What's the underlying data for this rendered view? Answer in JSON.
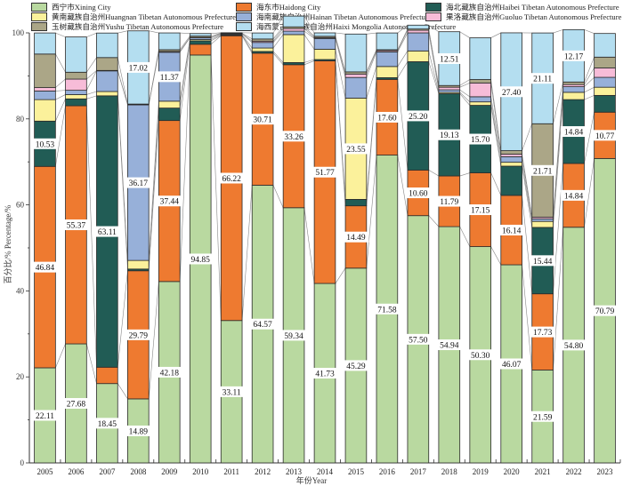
{
  "chart_data": {
    "type": "bar",
    "stacked": true,
    "title": "",
    "xlabel": "年份Year",
    "ylabel": "百分比/%  Percentage/%",
    "ylim": [
      0,
      100
    ],
    "yticks": [
      0,
      20,
      40,
      60,
      80,
      100
    ],
    "grid": false,
    "legend_position": "top",
    "categories": [
      "2005",
      "2006",
      "2007",
      "2008",
      "2009",
      "2010",
      "2011",
      "2012",
      "2013",
      "2014",
      "2015",
      "2016",
      "2017",
      "2018",
      "2019",
      "2020",
      "2021",
      "2022",
      "2023"
    ],
    "series": [
      {
        "name": "西宁市Xining City",
        "color": "#b9d9a0",
        "values": [
          22.11,
          27.68,
          18.45,
          14.89,
          42.18,
          94.85,
          33.11,
          64.57,
          59.34,
          41.73,
          45.29,
          71.58,
          57.5,
          54.94,
          50.3,
          46.07,
          21.59,
          54.8,
          70.79
        ]
      },
      {
        "name": "海东市Haidong City",
        "color": "#ee7a30",
        "values": [
          46.84,
          55.37,
          3.8,
          29.79,
          37.44,
          2.5,
          66.22,
          30.71,
          33.26,
          51.77,
          14.49,
          17.6,
          10.6,
          11.79,
          17.15,
          16.14,
          17.73,
          14.84,
          10.77
        ]
      },
      {
        "name": "海北藏族自治州Haibei Tibetan Autonomous Prefecture",
        "color": "#215c55",
        "values": [
          10.53,
          1.6,
          63.11,
          0.4,
          2.9,
          0.8,
          0.1,
          0.4,
          0.5,
          0.3,
          1.5,
          0.4,
          25.2,
          19.13,
          15.7,
          6.8,
          15.44,
          14.84,
          3.9
        ]
      },
      {
        "name": "黄南藏族自治州Huangnan Tibetan Autonomous Prefecture",
        "color": "#fbf19b",
        "values": [
          5.0,
          1.0,
          1.0,
          2.0,
          1.6,
          0.3,
          0.1,
          0.8,
          6.5,
          2.4,
          23.55,
          2.6,
          2.5,
          0.3,
          0.8,
          0.9,
          1.4,
          1.7,
          1.9
        ]
      },
      {
        "name": "海南藏族自治州Hainan Tibetan Autonomous Prefecture",
        "color": "#97b0d9",
        "values": [
          2.0,
          1.0,
          4.8,
          36.17,
          11.37,
          0.4,
          0.2,
          1.3,
          0.8,
          2.5,
          4.8,
          3.4,
          4.2,
          0.6,
          1.2,
          1.3,
          0.6,
          1.3,
          2.3
        ]
      },
      {
        "name": "果洛藏族自治州Guoluo Tibetan Autonomous Prefecture",
        "color": "#f7bcd8",
        "values": [
          0.8,
          2.6,
          0.1,
          0.1,
          0.2,
          0.1,
          0.1,
          0.3,
          0.6,
          0.2,
          0.8,
          0.3,
          0.6,
          0.6,
          3.2,
          0.6,
          0.4,
          0.5,
          2.2
        ]
      },
      {
        "name": "玉树藏族自治州Yushu Tibetan Autonomous Prefecture",
        "color": "#aba687",
        "values": [
          7.8,
          1.6,
          3.0,
          0.1,
          0.4,
          0.3,
          0.1,
          0.5,
          0.4,
          0.3,
          0.5,
          0.2,
          0.3,
          0.4,
          0.8,
          0.8,
          21.71,
          0.6,
          2.5
        ]
      },
      {
        "name": "海西蒙古族藏族自治州Haixi Mongolia Autonomous Prefecture",
        "color": "#b4def0",
        "values": [
          4.9,
          8.2,
          5.7,
          17.02,
          3.9,
          0.6,
          0.1,
          1.4,
          2.5,
          0.8,
          8.8,
          3.9,
          0.9,
          12.51,
          9.7,
          27.4,
          21.11,
          12.17,
          5.5
        ]
      }
    ],
    "labels": [
      {
        "series": 0,
        "indices": [
          0,
          1,
          2,
          3,
          4,
          5,
          6,
          7,
          8,
          9,
          10,
          11,
          12,
          13,
          14,
          15,
          16,
          17,
          18
        ]
      },
      {
        "series": 1,
        "indices": [
          0,
          1,
          3,
          4,
          6,
          7,
          8,
          9,
          10,
          11,
          12,
          13,
          14,
          15,
          16,
          17,
          18
        ]
      },
      {
        "series": 2,
        "indices": [
          0,
          2,
          12,
          13,
          14,
          16,
          17
        ]
      },
      {
        "series": 3,
        "indices": [
          10
        ]
      },
      {
        "series": 4,
        "indices": [
          3,
          4
        ]
      },
      {
        "series": 6,
        "indices": [
          16
        ]
      },
      {
        "series": 7,
        "indices": [
          3,
          13,
          15,
          16,
          17
        ]
      }
    ]
  },
  "legend": {
    "items": [
      {
        "label": "西宁市Xining City",
        "series": 0
      },
      {
        "label": "海东市Haidong City",
        "series": 1
      },
      {
        "label": "海北藏族自治州Haibei Tibetan Autonomous Prefecture",
        "series": 2
      },
      {
        "label": "黄南藏族自治州Huangnan Tibetan Autonomous Prefecture",
        "series": 3
      },
      {
        "label": "海南藏族自治州Hainan Tibetan Autonomous Prefecture",
        "series": 4
      },
      {
        "label": "果洛藏族自治州Guoluo Tibetan Autonomous Prefecture",
        "series": 5
      },
      {
        "label": "玉树藏族自治州Yushu Tibetan Autonomous Prefecture",
        "series": 6
      },
      {
        "label": "海西蒙古族藏族自治州Haixi Mongolia Autonomous Prefecture",
        "series": 7
      }
    ]
  }
}
